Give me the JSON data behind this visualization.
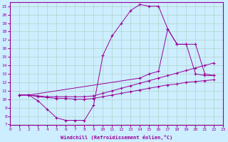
{
  "xlabel": "Windchill (Refroidissement éolien,°C)",
  "bg_color": "#cceeff",
  "grid_color": "#aaccbb",
  "line_color": "#990099",
  "xlim": [
    0,
    23
  ],
  "ylim": [
    7,
    21.5
  ],
  "xticks": [
    0,
    1,
    2,
    3,
    4,
    5,
    6,
    7,
    8,
    9,
    10,
    11,
    12,
    13,
    14,
    15,
    16,
    17,
    18,
    19,
    20,
    21,
    22,
    23
  ],
  "yticks": [
    7,
    8,
    9,
    10,
    11,
    12,
    13,
    14,
    15,
    16,
    17,
    18,
    19,
    20,
    21
  ],
  "series": [
    {
      "x": [
        1,
        2,
        3,
        4,
        5,
        6,
        7,
        8,
        9,
        10,
        11,
        12,
        13,
        14,
        15,
        16,
        17,
        18,
        19,
        20,
        21,
        22
      ],
      "y": [
        10.5,
        10.5,
        9.8,
        8.8,
        7.8,
        7.5,
        7.5,
        7.5,
        9.3,
        15.2,
        17.5,
        19.0,
        20.5,
        21.2,
        21.0,
        21.0,
        18.3,
        16.5,
        16.5,
        13.0,
        12.8,
        12.8
      ]
    },
    {
      "x": [
        1,
        2,
        14,
        15,
        16,
        17,
        18,
        19,
        20,
        21,
        22
      ],
      "y": [
        10.5,
        10.5,
        12.5,
        13.0,
        13.3,
        18.3,
        16.5,
        16.5,
        16.5,
        13.0,
        12.8
      ]
    },
    {
      "x": [
        1,
        2,
        3,
        4,
        5,
        6,
        7,
        8,
        9,
        10,
        11,
        12,
        13,
        14,
        15,
        16,
        17,
        18,
        19,
        20,
        21,
        22
      ],
      "y": [
        10.5,
        10.5,
        10.3,
        10.2,
        10.1,
        10.1,
        10.0,
        10.0,
        10.1,
        10.3,
        10.5,
        10.7,
        10.9,
        11.1,
        11.3,
        11.5,
        11.7,
        11.8,
        12.0,
        12.1,
        12.2,
        12.3
      ]
    },
    {
      "x": [
        1,
        2,
        3,
        4,
        5,
        6,
        7,
        8,
        9,
        10,
        11,
        12,
        13,
        14,
        15,
        16,
        17,
        18,
        19,
        20,
        21,
        22
      ],
      "y": [
        10.5,
        10.5,
        10.4,
        10.3,
        10.3,
        10.3,
        10.3,
        10.3,
        10.4,
        10.7,
        11.0,
        11.3,
        11.6,
        11.9,
        12.2,
        12.5,
        12.8,
        13.1,
        13.4,
        13.7,
        14.0,
        14.3
      ]
    }
  ]
}
